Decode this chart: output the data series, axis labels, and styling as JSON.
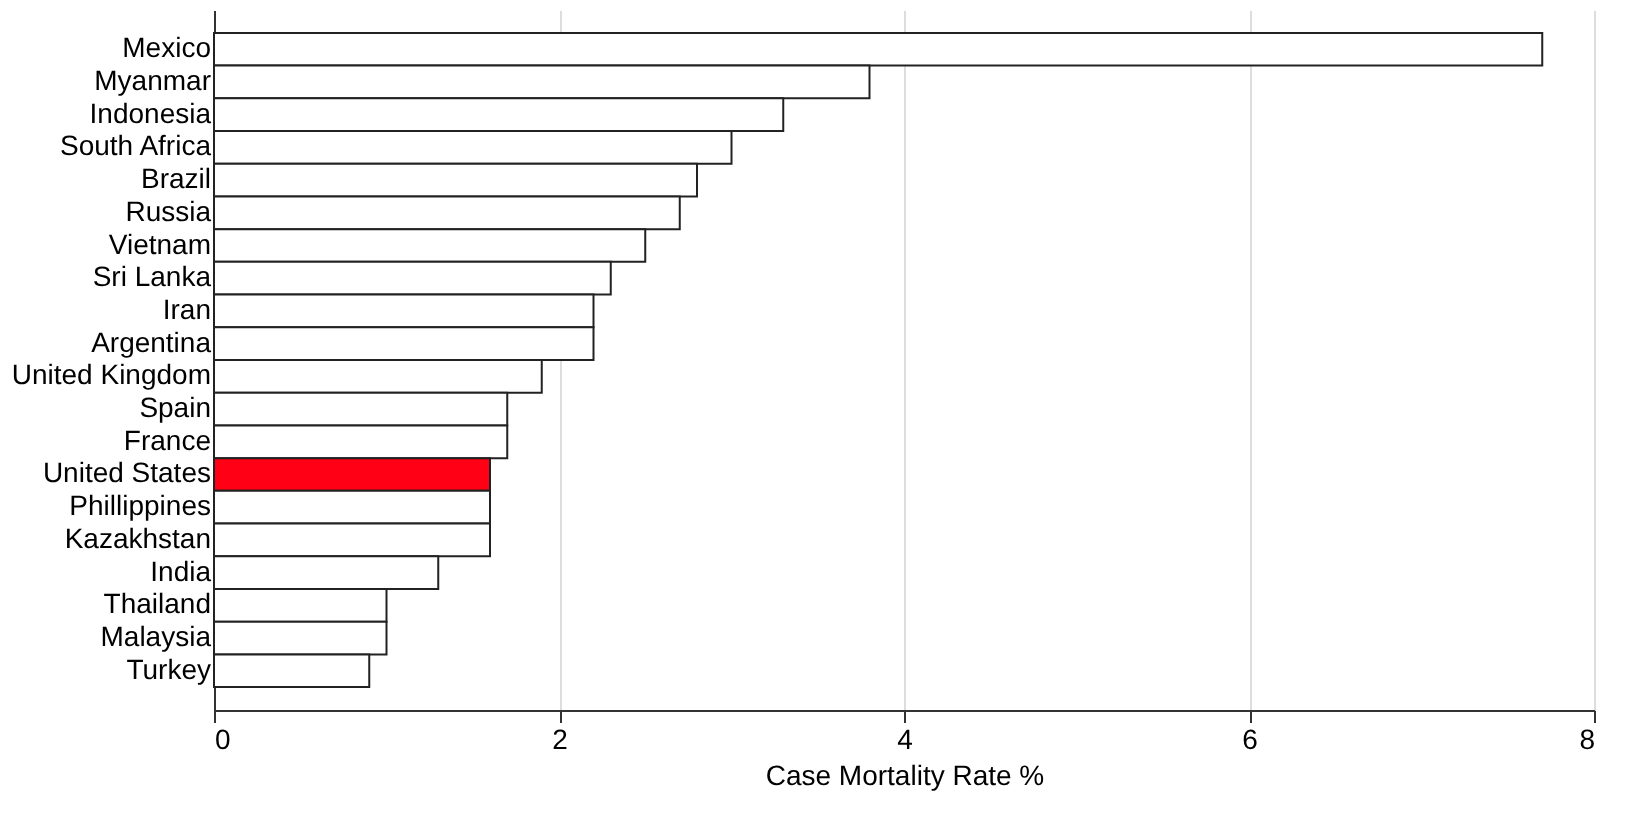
{
  "chart_data": {
    "type": "bar",
    "orientation": "horizontal",
    "xlabel": "Case Mortality Rate %",
    "categories": [
      "Mexico",
      "Myanmar",
      "Indonesia",
      "South Africa",
      "Brazil",
      "Russia",
      "Vietnam",
      "Sri Lanka",
      "Iran",
      "Argentina",
      "United Kingdom",
      "Spain",
      "France",
      "United States",
      "Phillippines",
      "Kazakhstan",
      "India",
      "Thailand",
      "Malaysia",
      "Turkey"
    ],
    "values": [
      7.7,
      3.8,
      3.3,
      3.0,
      2.8,
      2.7,
      2.5,
      2.3,
      2.2,
      2.2,
      1.9,
      1.7,
      1.7,
      1.6,
      1.6,
      1.6,
      1.3,
      1.0,
      1.0,
      0.9
    ],
    "colors": [
      "#ffffff",
      "#ffffff",
      "#ffffff",
      "#ffffff",
      "#ffffff",
      "#ffffff",
      "#ffffff",
      "#ffffff",
      "#ffffff",
      "#ffffff",
      "#ffffff",
      "#ffffff",
      "#ffffff",
      "#ff0015",
      "#ffffff",
      "#ffffff",
      "#ffffff",
      "#ffffff",
      "#ffffff",
      "#ffffff"
    ],
    "xlim": [
      0,
      8
    ],
    "xticks": [
      0,
      2,
      4,
      6,
      8
    ],
    "grid": "x"
  }
}
